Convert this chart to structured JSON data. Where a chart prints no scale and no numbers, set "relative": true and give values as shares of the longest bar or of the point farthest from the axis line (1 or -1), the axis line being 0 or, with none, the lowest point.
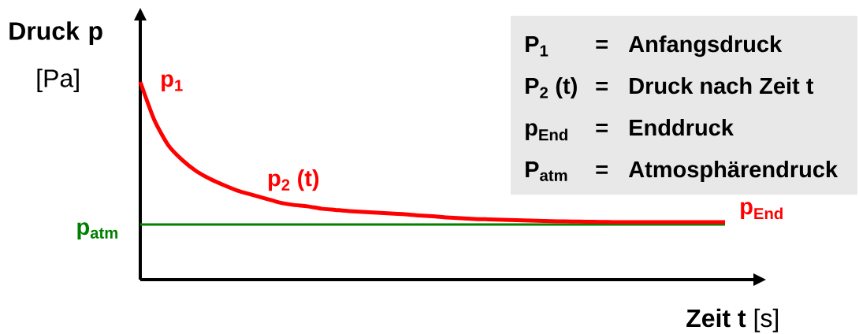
{
  "chart_data": [
    {
      "type": "line",
      "relative": true,
      "xlabel": "**Zeit t** [s]",
      "ylabel": "**Druck p** [Pa]",
      "categories": [
        null,
        null,
        null,
        null,
        null,
        null,
        null,
        null,
        null,
        null,
        null,
        null,
        null,
        null,
        null,
        null,
        null,
        null,
        null,
        null,
        null,
        null,
        null,
        null,
        null,
        null,
        null,
        null,
        null,
        null,
        null,
        null,
        null,
        null,
        null,
        null,
        null,
        null,
        null,
        null,
        null,
        null,
        null
      ],
      "series": [
        {
          "name": "p$_{2}$ (t)",
          "color": "#ff0000",
          "values": [
            1.0,
            0.809,
            0.681,
            0.606,
            0.55,
            0.51,
            0.478,
            0.45,
            0.43,
            0.41,
            0.39,
            0.378,
            0.371,
            0.359,
            0.353,
            0.347,
            0.343,
            0.339,
            0.335,
            0.331,
            0.325,
            0.321,
            0.315,
            0.311,
            0.307,
            0.305,
            0.303,
            0.301,
            0.299,
            0.297,
            0.295,
            0.294,
            0.293,
            0.292,
            0.291,
            0.291,
            0.291,
            0.291,
            0.291,
            0.291,
            0.291,
            0.291,
            0.291
          ]
        }
      ],
      "ref_lines": [
        {
          "axis": "y",
          "value": 0.279,
          "label": "p$_{atm}$",
          "color": "#008000"
        }
      ],
      "annotations": [
        "p$_{1}$",
        "p$_{End}$"
      ]
    },
    {
      "type": "other",
      "annotations": [
        "P$_{1}$",
        "=",
        "Anfangsdruck",
        "P$_{2}$ (t)",
        "=",
        "Druck nach Zeit t",
        "p$_{End}$",
        "=",
        "Enddruck",
        "P$_{atm}$",
        "=",
        "Atmosphärendruck"
      ]
    }
  ]
}
